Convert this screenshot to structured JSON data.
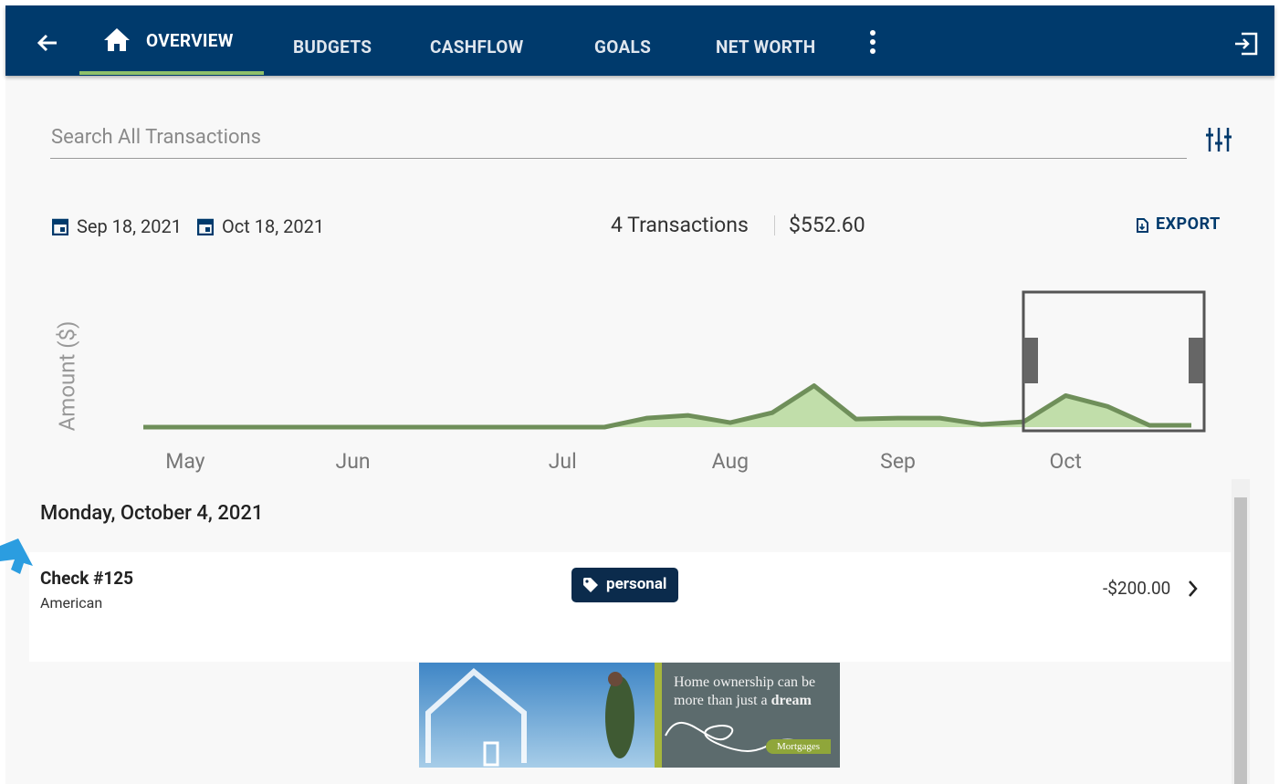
{
  "nav": {
    "tabs": [
      "OVERVIEW",
      "BUDGETS",
      "CASHFLOW",
      "GOALS",
      "NET WORTH"
    ]
  },
  "search": {
    "placeholder": "Search All Transactions"
  },
  "summary": {
    "start_date": "Sep 18, 2021",
    "end_date": "Oct 18, 2021",
    "count": "4 Transactions",
    "total": "$552.60",
    "export": "EXPORT"
  },
  "chart_data": {
    "type": "area",
    "y_label": "Amount ($)",
    "color": "#6f8f5a",
    "categories": [
      null,
      "May",
      null,
      null,
      null,
      "Jun",
      null,
      null,
      null,
      null,
      "Jul",
      null,
      null,
      null,
      "Aug",
      null,
      null,
      null,
      "Sep",
      null,
      null,
      null,
      "Oct",
      null,
      null,
      null
    ],
    "values": [
      0,
      0,
      0,
      0,
      0,
      0,
      0,
      0,
      0,
      0,
      0,
      0,
      80,
      104,
      40,
      128,
      368,
      72,
      80,
      80,
      24,
      48,
      280,
      184,
      16,
      16
    ],
    "ylim": [
      0,
      1200
    ]
  },
  "transactions": {
    "date_heading": "Monday, October 4, 2021",
    "items": [
      {
        "title": "Check #125",
        "subtitle": "American",
        "tag": "personal",
        "amount": "-$200.00"
      }
    ]
  },
  "ad": {
    "line1": "Home ownership can be",
    "line2": "more than just a",
    "line2_bold": "dream",
    "button": "Mortgages"
  }
}
